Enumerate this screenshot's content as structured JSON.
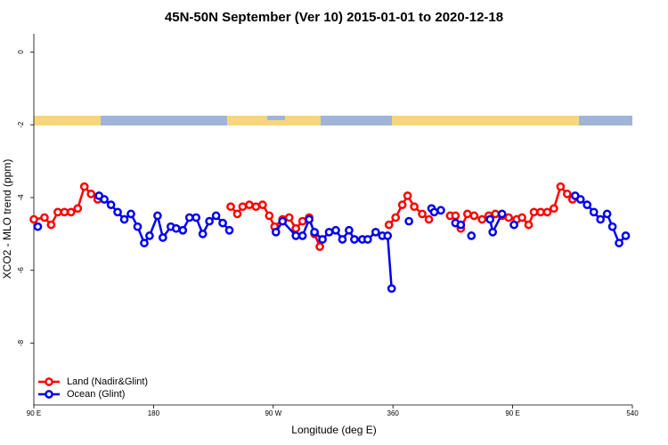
{
  "chart_data": {
    "type": "line",
    "title": "45N-50N September (Ver 10)   2015-01-01 to 2020-12-18",
    "x_label": "Longitude (deg E)",
    "y_label": "XCO2 - MLO trend (ppm)",
    "xlim": [
      90,
      540
    ],
    "ylim": [
      -9.7,
      0.5
    ],
    "xticks": [
      {
        "value": 90,
        "label": "90 E"
      },
      180,
      {
        "value": 270,
        "label": "90 W"
      },
      360,
      {
        "value": 450,
        "label": "90 E"
      },
      540
    ],
    "yticks": [
      0,
      -2,
      -4,
      -6,
      -8
    ],
    "legend": "bottomleft",
    "series": [
      {
        "name": "Land (Nadir&Glint)",
        "color": "#ff0000",
        "x": [
          90,
          98,
          103,
          108,
          113,
          118,
          123,
          128,
          133,
          138,
          null,
          238,
          243,
          247,
          252,
          257,
          262,
          267,
          271,
          277,
          282,
          287,
          292,
          297,
          301,
          305,
          null,
          357,
          362,
          367,
          371,
          376,
          382,
          387,
          null,
          403,
          407,
          411,
          416,
          421,
          427,
          432,
          437,
          442,
          447,
          453,
          457,
          462,
          466,
          471,
          476,
          481,
          486,
          491,
          495
        ],
        "values": [
          -4.6,
          -4.55,
          -4.75,
          -4.4,
          -4.4,
          -4.4,
          -4.3,
          -3.7,
          -3.9,
          -4.05,
          null,
          -4.25,
          -4.45,
          -4.25,
          -4.2,
          -4.25,
          -4.2,
          -4.5,
          -4.8,
          -4.6,
          -4.55,
          -4.85,
          -4.65,
          -4.55,
          -5.0,
          -5.35,
          null,
          -4.75,
          -4.55,
          -4.2,
          -3.95,
          -4.25,
          -4.45,
          -4.6,
          null,
          -4.5,
          -4.5,
          -4.85,
          -4.45,
          -4.5,
          -4.6,
          -4.5,
          -4.45,
          -4.5,
          -4.55,
          -4.6,
          -4.55,
          -4.75,
          -4.4,
          -4.4,
          -4.4,
          -4.3,
          -3.7,
          -3.9,
          -4.05
        ]
      },
      {
        "name": "Ocean (Glint)",
        "color": "#0000ee",
        "x": [
          93,
          null,
          139,
          143,
          148,
          153,
          158,
          163,
          168,
          173,
          177,
          183,
          187,
          193,
          197,
          202,
          207,
          212,
          217,
          222,
          227,
          232,
          237,
          null,
          272,
          277,
          287,
          292,
          297,
          301,
          307,
          312,
          317,
          322,
          327,
          331,
          337,
          341,
          347,
          352,
          356,
          359,
          null,
          372,
          null,
          389,
          391,
          396,
          null,
          407,
          411,
          null,
          419,
          null,
          433,
          435,
          442,
          null,
          451,
          null,
          497,
          501,
          506,
          511,
          516,
          521,
          525,
          530,
          535
        ],
        "values": [
          -4.8,
          null,
          -3.95,
          -4.05,
          -4.2,
          -4.4,
          -4.6,
          -4.45,
          -4.8,
          -5.25,
          -5.05,
          -4.5,
          -5.1,
          -4.8,
          -4.85,
          -4.9,
          -4.55,
          -4.55,
          -5.0,
          -4.65,
          -4.5,
          -4.7,
          -4.9,
          null,
          -4.95,
          -4.65,
          -5.05,
          -5.05,
          -4.6,
          -4.95,
          -5.15,
          -4.95,
          -4.9,
          -5.15,
          -4.9,
          -5.15,
          -5.15,
          -5.15,
          -4.95,
          -5.05,
          -5.05,
          -6.5,
          null,
          -4.65,
          null,
          -4.3,
          -4.4,
          -4.35,
          null,
          -4.7,
          -4.75,
          null,
          -5.05,
          null,
          -4.6,
          -4.95,
          -4.45,
          null,
          -4.75,
          null,
          -3.95,
          -4.05,
          -4.2,
          -4.4,
          -4.6,
          -4.45,
          -4.8,
          -5.25,
          -5.05
        ]
      }
    ]
  }
}
